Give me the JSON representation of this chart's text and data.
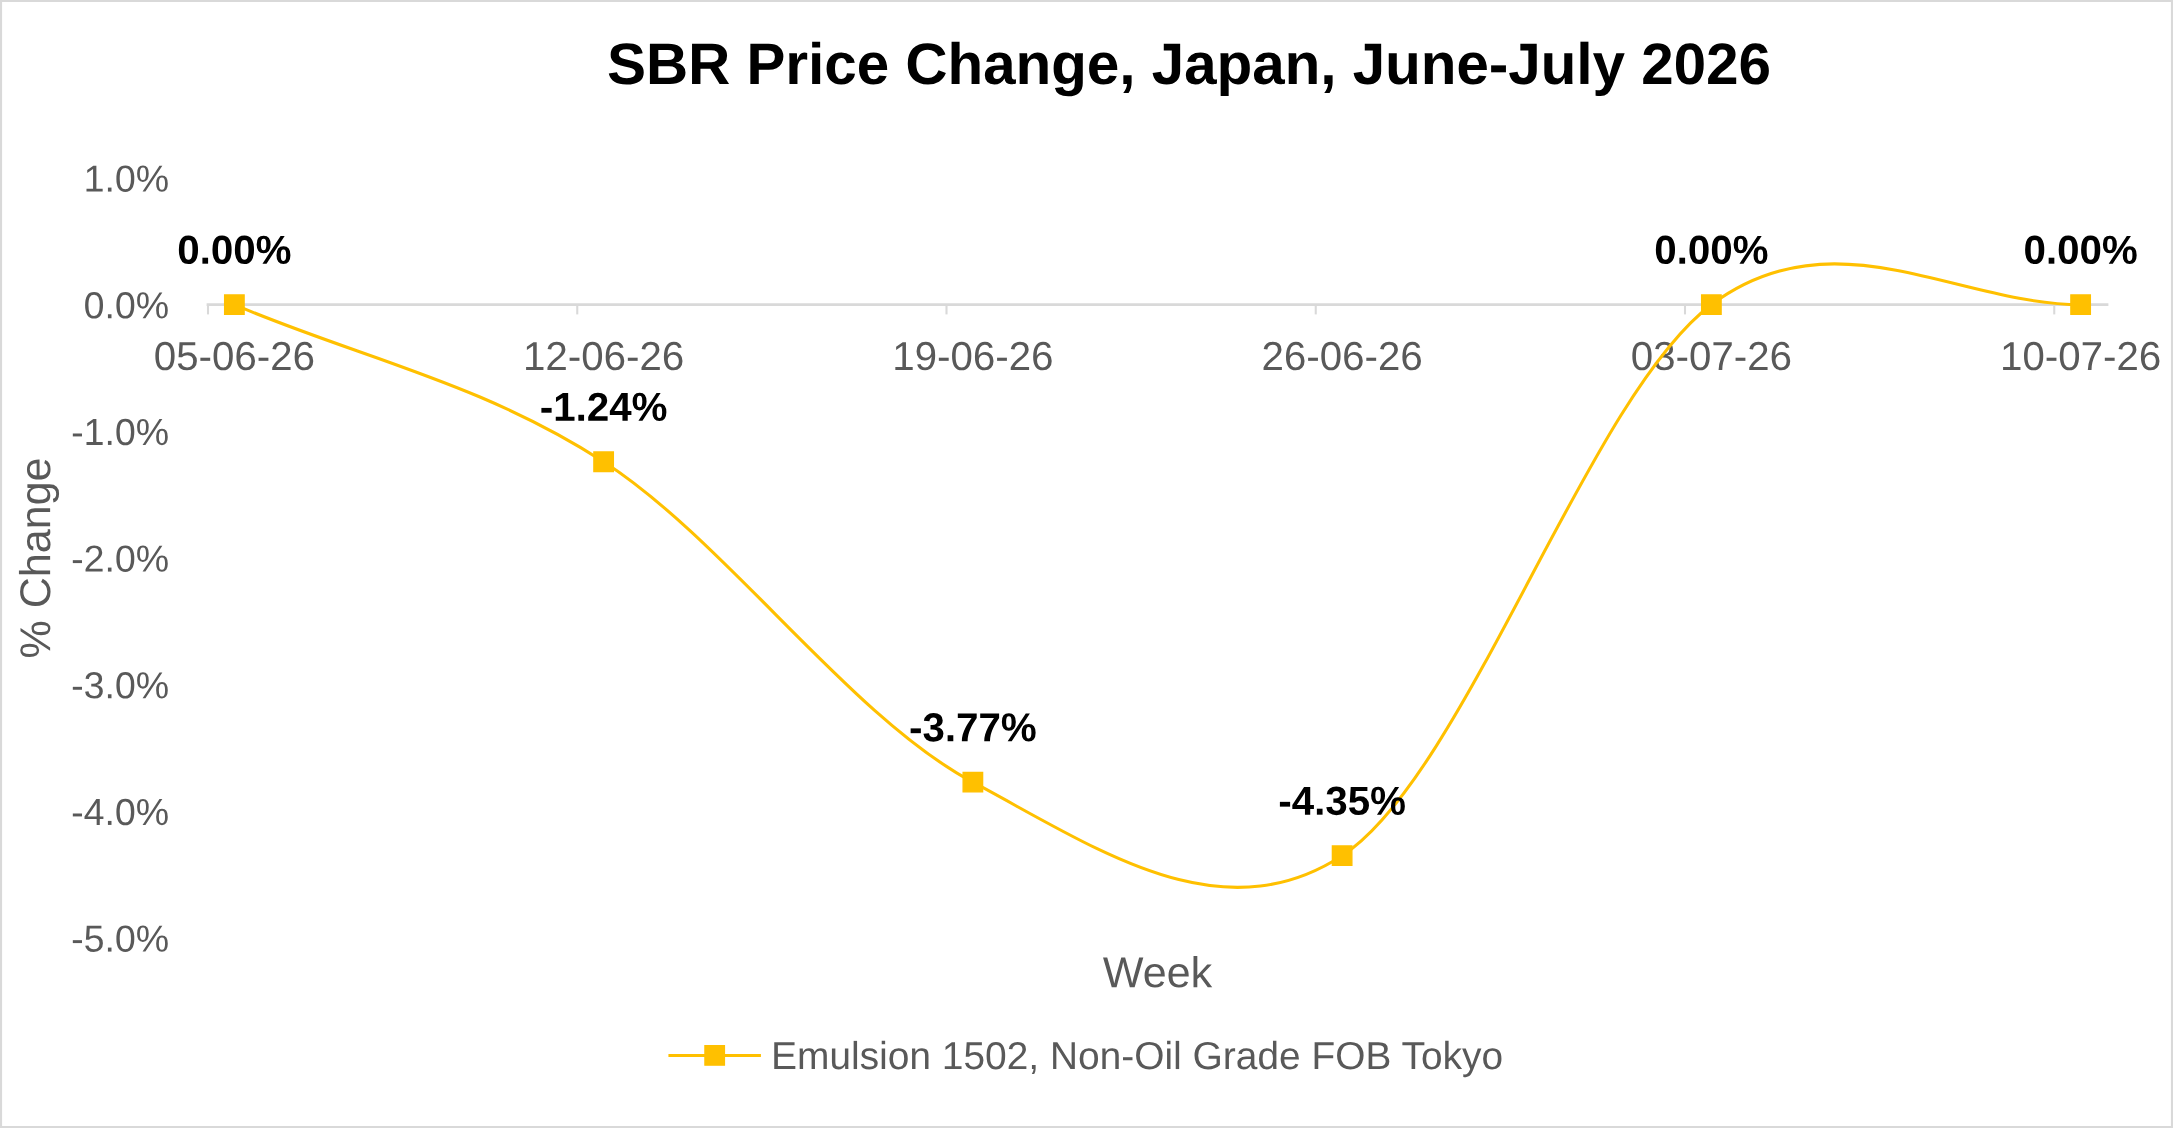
{
  "chart_data": {
    "type": "line",
    "title": "SBR Price Change, Japan, June-July 2026",
    "xlabel": "Week",
    "ylabel": "% Change",
    "categories": [
      "05-06-26",
      "12-06-26",
      "19-06-26",
      "26-06-26",
      "03-07-26",
      "10-07-26"
    ],
    "series": [
      {
        "name": "Emulsion 1502, Non-Oil Grade FOB Tokyo",
        "color": "#ffc000",
        "values": [
          0,
          -1.24,
          -3.77,
          -4.35,
          0,
          0
        ],
        "value_labels": [
          "0.00%",
          "-1.24%",
          "-3.77%",
          "-4.35%",
          "0.00%",
          "0.00%"
        ]
      }
    ],
    "ylim": [
      -5,
      1
    ],
    "yticks": [
      {
        "value": 1,
        "label": "1.0%"
      },
      {
        "value": 0,
        "label": "0.0%"
      },
      {
        "value": -1,
        "label": "-1.0%"
      },
      {
        "value": -2,
        "label": "-2.0%"
      },
      {
        "value": -3,
        "label": "-3.0%"
      },
      {
        "value": -4,
        "label": "-4.0%"
      },
      {
        "value": -5,
        "label": "-5.0%"
      }
    ],
    "legend": "bottom",
    "marker": "square",
    "line_style": "solid"
  }
}
